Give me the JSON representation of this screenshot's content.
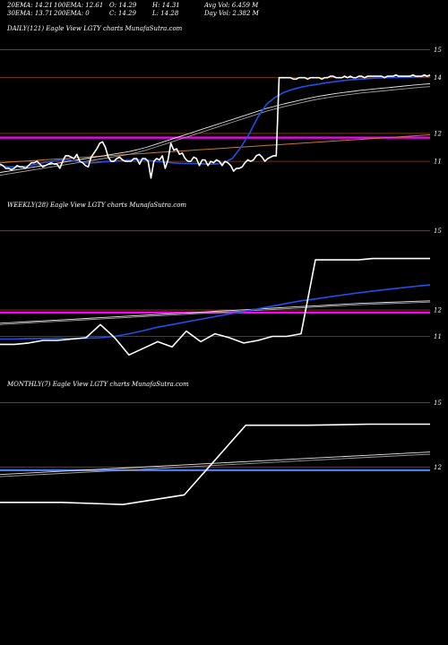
{
  "header": {
    "ema20": "20EMA: 14.21",
    "ema100": "100EMA: 12.61",
    "open": "O: 14.29",
    "high": "H: 14.31",
    "avg_vol": "Avg Vol: 6.459 M",
    "ema30": "30EMA: 13.71",
    "ema200": "200EMA: 0",
    "close": "C: 14.29",
    "low": "L: 14.28",
    "day_vol": "Day Vol: 2.382  M"
  },
  "colors": {
    "background": "#000000",
    "price": "#ffffff",
    "ema_fast": "#1e50e6",
    "ema_slow_a": "#e6e6e6",
    "ema_slow_b": "#a0a0a0",
    "gridline": "#8b4513",
    "magenta_level": "#ff00ff",
    "blue_level": "#4a78ff",
    "orange_ma": "#c87828"
  },
  "chart_data": [
    {
      "type": "line",
      "title": "DAILY(121) Eagle   View  LGTY charts MunafaSutra.com",
      "ylim": [
        10.2,
        15.5
      ],
      "yticks": [
        "15",
        "14",
        "12",
        "11"
      ],
      "ytick_values": [
        15,
        14,
        12,
        11
      ],
      "level_magenta": 11.85,
      "series": [
        {
          "role": "price",
          "values": [
            10.9,
            10.85,
            10.75,
            10.75,
            10.7,
            10.75,
            10.85,
            10.8,
            10.8,
            10.75,
            10.85,
            10.95,
            10.95,
            11.0,
            10.9,
            10.8,
            10.85,
            10.9,
            10.95,
            10.9,
            10.9,
            10.75,
            11.0,
            11.2,
            11.2,
            11.15,
            11.1,
            11.25,
            11.0,
            10.95,
            10.85,
            10.8,
            11.15,
            11.3,
            11.45,
            11.65,
            11.7,
            11.5,
            11.15,
            11.0,
            11.0,
            11.1,
            11.15,
            11.05,
            11.0,
            11.0,
            11.0,
            11.1,
            11.1,
            10.9,
            11.1,
            11.1,
            11.0,
            10.4,
            11.0,
            11.1,
            11.05,
            11.2,
            10.75,
            11.05,
            11.65,
            11.4,
            11.45,
            11.25,
            11.3,
            11.1,
            11.0,
            11.0,
            11.15,
            11.1,
            10.85,
            11.05,
            11.05,
            10.85,
            11.0,
            10.95,
            11.05,
            11.0,
            10.85,
            11.0,
            10.95,
            10.85,
            10.65,
            10.75,
            10.75,
            10.8,
            10.95,
            11.05,
            11.0,
            11.05,
            11.2,
            11.25,
            11.15,
            11.0,
            11.1,
            11.15,
            11.2,
            11.2,
            14.0,
            14.0,
            14.0,
            14.0,
            14.0,
            13.95,
            13.95,
            14.0,
            14.0,
            14.0,
            13.95,
            14.0,
            14.0,
            14.0,
            14.0,
            13.95,
            14.0,
            14.0,
            14.05,
            14.05,
            14.0,
            14.0,
            14.0,
            14.05,
            14.0,
            14.05,
            14.0,
            14.0,
            14.05,
            14.05,
            14.0,
            14.05,
            14.05,
            14.05,
            14.05,
            14.05,
            14.05,
            14.0,
            14.05,
            14.05,
            14.05,
            14.1,
            14.05,
            14.05,
            14.05,
            14.05,
            14.05,
            14.1,
            14.05,
            14.05,
            14.05,
            14.1,
            14.05,
            14.1
          ]
        },
        {
          "role": "ema_fast",
          "values": [
            10.85,
            10.8,
            10.8,
            10.82,
            10.88,
            10.95,
            11.0,
            11.05,
            11.05,
            11.0,
            10.95,
            10.95,
            10.98,
            11.0,
            11.02,
            11.05,
            11.05,
            11.05,
            11.0,
            10.98,
            10.95,
            10.93,
            10.92,
            10.92,
            10.9,
            10.9,
            10.95,
            11.1,
            11.5,
            12.0,
            12.6,
            13.05,
            13.3,
            13.47,
            13.58,
            13.66,
            13.72,
            13.77,
            13.82,
            13.86,
            13.9,
            13.93,
            13.95,
            13.97,
            13.99,
            14.0,
            14.01,
            14.02,
            14.03,
            14.04,
            14.05
          ]
        },
        {
          "role": "ema_slow_a",
          "values": [
            10.6,
            10.65,
            10.7,
            10.75,
            10.8,
            10.85,
            10.9,
            10.95,
            11.0,
            11.05,
            11.1,
            11.15,
            11.2,
            11.25,
            11.3,
            11.35,
            11.42,
            11.5,
            11.6,
            11.7,
            11.8,
            11.9,
            12.0,
            12.1,
            12.2,
            12.3,
            12.4,
            12.5,
            12.6,
            12.7,
            12.8,
            12.9,
            12.98,
            13.06,
            13.13,
            13.2,
            13.27,
            13.33,
            13.38,
            13.43,
            13.47,
            13.51,
            13.55,
            13.58,
            13.61,
            13.64,
            13.67,
            13.7,
            13.73,
            13.76,
            13.78
          ]
        },
        {
          "role": "ema_slow_b",
          "values": [
            10.5,
            10.55,
            10.6,
            10.65,
            10.7,
            10.75,
            10.8,
            10.85,
            10.9,
            10.95,
            11.0,
            11.05,
            11.1,
            11.15,
            11.2,
            11.25,
            11.32,
            11.4,
            11.5,
            11.6,
            11.7,
            11.8,
            11.9,
            12.0,
            12.1,
            12.2,
            12.3,
            12.4,
            12.5,
            12.6,
            12.7,
            12.8,
            12.88,
            12.96,
            13.03,
            13.1,
            13.17,
            13.23,
            13.28,
            13.33,
            13.37,
            13.41,
            13.45,
            13.48,
            13.51,
            13.54,
            13.57,
            13.6,
            13.63,
            13.66,
            13.68
          ]
        },
        {
          "role": "orange_ma",
          "values": [
            10.95,
            10.97,
            10.99,
            11.01,
            11.03,
            11.05,
            11.07,
            11.09,
            11.11,
            11.13,
            11.15,
            11.17,
            11.19,
            11.21,
            11.23,
            11.25,
            11.27,
            11.29,
            11.31,
            11.33,
            11.35,
            11.37,
            11.39,
            11.41,
            11.43,
            11.45,
            11.47,
            11.49,
            11.51,
            11.53,
            11.55,
            11.57,
            11.59,
            11.61,
            11.63,
            11.65,
            11.67,
            11.69,
            11.71,
            11.73,
            11.75,
            11.77,
            11.79,
            11.81,
            11.83,
            11.85,
            11.87,
            11.89,
            11.91,
            11.93,
            11.95
          ]
        }
      ]
    },
    {
      "type": "line",
      "title": "WEEKLY(28) Eagle   View  LGTY charts MunafaSutra.com",
      "ylim": [
        10.0,
        15.6
      ],
      "yticks": [
        "15",
        "12",
        "11"
      ],
      "ytick_values": [
        15,
        12,
        11
      ],
      "level_magenta": 11.9,
      "series": [
        {
          "role": "price",
          "values": [
            10.7,
            10.7,
            10.75,
            10.85,
            10.85,
            10.9,
            10.95,
            11.45,
            10.95,
            10.3,
            10.55,
            10.8,
            10.6,
            11.2,
            10.8,
            11.1,
            10.95,
            10.75,
            10.85,
            11.0,
            11.0,
            11.1,
            13.9,
            13.9,
            13.9,
            13.9,
            13.95,
            13.95,
            13.95,
            13.95,
            13.95
          ]
        },
        {
          "role": "ema_fast",
          "values": [
            10.9,
            10.9,
            10.92,
            10.92,
            10.93,
            10.92,
            10.93,
            10.95,
            11.0,
            11.1,
            11.22,
            11.35,
            11.45,
            11.55,
            11.65,
            11.75,
            11.85,
            11.95,
            12.05,
            12.15,
            12.25,
            12.35,
            12.42,
            12.5,
            12.58,
            12.65,
            12.72,
            12.78,
            12.84,
            12.9,
            12.95
          ]
        },
        {
          "role": "ema_slow_a",
          "values": [
            11.5,
            11.53,
            11.56,
            11.59,
            11.62,
            11.65,
            11.68,
            11.71,
            11.74,
            11.77,
            11.8,
            11.83,
            11.86,
            11.89,
            11.92,
            11.95,
            11.98,
            12.01,
            12.04,
            12.07,
            12.1,
            12.13,
            12.16,
            12.19,
            12.22,
            12.25,
            12.27,
            12.29,
            12.31,
            12.33,
            12.35
          ]
        },
        {
          "role": "ema_slow_b",
          "values": [
            11.45,
            11.48,
            11.51,
            11.54,
            11.57,
            11.6,
            11.63,
            11.66,
            11.69,
            11.72,
            11.75,
            11.78,
            11.81,
            11.84,
            11.87,
            11.9,
            11.93,
            11.96,
            11.99,
            12.02,
            12.05,
            12.08,
            12.11,
            12.14,
            12.17,
            12.2,
            12.22,
            12.24,
            12.26,
            12.28,
            12.3
          ]
        }
      ]
    },
    {
      "type": "line",
      "title": "MONTHLY(7) Eagle   View  LGTY charts MunafaSutra.com",
      "ylim": [
        8.5,
        15.4
      ],
      "yticks": [
        "15",
        "12"
      ],
      "ytick_values": [
        15,
        12
      ],
      "level_blue": 11.85,
      "series": [
        {
          "role": "price",
          "values": [
            10.35,
            10.35,
            10.25,
            10.7,
            13.95,
            13.95,
            14.0,
            14.0
          ]
        },
        {
          "role": "ema_slow_a",
          "values": [
            11.65,
            11.8,
            11.95,
            12.1,
            12.25,
            12.4,
            12.55,
            12.7
          ]
        },
        {
          "role": "ema_slow_b",
          "values": [
            11.55,
            11.7,
            11.85,
            12.0,
            12.15,
            12.3,
            12.45,
            12.6
          ]
        }
      ]
    }
  ]
}
